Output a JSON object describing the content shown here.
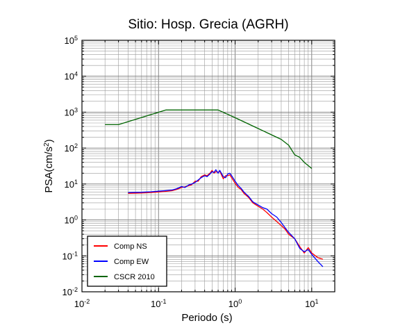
{
  "chart_data": {
    "type": "line",
    "title": "Sitio: Hosp. Grecia (AGRH)",
    "xlabel": "Periodo (s)",
    "ylabel": {
      "base": "PSA(cm/s",
      "sup": "2",
      "close": ")"
    },
    "xscale": "log",
    "yscale": "log",
    "xlim": [
      0.01,
      20
    ],
    "ylim": [
      0.01,
      100000
    ],
    "grid": true,
    "legend_position": "bottom-left",
    "x_ticks": [
      {
        "value": 0.01,
        "base": "10",
        "exp": "-2"
      },
      {
        "value": 0.1,
        "base": "10",
        "exp": "-1"
      },
      {
        "value": 1,
        "base": "10",
        "exp": "0"
      },
      {
        "value": 10,
        "base": "10",
        "exp": "1"
      }
    ],
    "y_ticks": [
      {
        "value": 0.01,
        "base": "10",
        "exp": "-2"
      },
      {
        "value": 0.1,
        "base": "10",
        "exp": "-1"
      },
      {
        "value": 1,
        "base": "10",
        "exp": "0"
      },
      {
        "value": 10,
        "base": "10",
        "exp": "1"
      },
      {
        "value": 100,
        "base": "10",
        "exp": "2"
      },
      {
        "value": 1000,
        "base": "10",
        "exp": "3"
      },
      {
        "value": 10000,
        "base": "10",
        "exp": "4"
      },
      {
        "value": 100000,
        "base": "10",
        "exp": "5"
      }
    ],
    "series": [
      {
        "name": "Comp NS",
        "color": "#ff0000",
        "x": [
          0.04,
          0.06,
          0.08,
          0.1,
          0.12,
          0.15,
          0.17,
          0.2,
          0.22,
          0.25,
          0.27,
          0.3,
          0.33,
          0.36,
          0.4,
          0.43,
          0.47,
          0.5,
          0.53,
          0.56,
          0.6,
          0.63,
          0.67,
          0.7,
          0.75,
          0.8,
          0.85,
          0.9,
          1.0,
          1.1,
          1.2,
          1.3,
          1.5,
          1.7,
          2.0,
          2.3,
          2.6,
          3.0,
          3.5,
          4.0,
          4.5,
          5.0,
          6.0,
          7.0,
          8.0,
          9.0,
          10.0,
          12.0,
          14.0
        ],
        "y": [
          5.5,
          5.6,
          5.8,
          6.0,
          6.2,
          6.5,
          7.0,
          8.0,
          8.3,
          9.0,
          9.5,
          12.0,
          12.0,
          16.0,
          18.0,
          17.0,
          20.0,
          24.0,
          20.0,
          22.0,
          21.0,
          23.0,
          17.0,
          14.0,
          17.0,
          17.0,
          18.0,
          15.0,
          10.5,
          8.0,
          7.0,
          5.5,
          4.2,
          3.0,
          2.4,
          2.0,
          1.6,
          1.2,
          0.9,
          0.7,
          0.55,
          0.4,
          0.3,
          0.18,
          0.12,
          0.17,
          0.12,
          0.09,
          0.08
        ]
      },
      {
        "name": "Comp EW",
        "color": "#0000ff",
        "x": [
          0.04,
          0.06,
          0.08,
          0.1,
          0.12,
          0.15,
          0.17,
          0.2,
          0.22,
          0.25,
          0.27,
          0.3,
          0.33,
          0.36,
          0.4,
          0.43,
          0.47,
          0.5,
          0.53,
          0.56,
          0.6,
          0.63,
          0.67,
          0.7,
          0.75,
          0.8,
          0.85,
          0.9,
          1.0,
          1.1,
          1.2,
          1.3,
          1.5,
          1.7,
          2.0,
          2.3,
          2.6,
          3.0,
          3.5,
          4.0,
          4.5,
          5.0,
          6.0,
          7.0,
          8.0,
          9.0,
          10.0,
          12.0,
          14.0
        ],
        "y": [
          5.8,
          5.9,
          6.1,
          6.3,
          6.5,
          6.8,
          7.3,
          8.5,
          8.0,
          9.5,
          10.0,
          11.0,
          13.0,
          15.0,
          17.0,
          16.0,
          19.0,
          22.0,
          21.0,
          25.0,
          20.0,
          24.0,
          19.0,
          16.0,
          15.0,
          19.0,
          20.0,
          17.0,
          12.0,
          9.0,
          7.5,
          6.0,
          4.5,
          3.2,
          2.6,
          2.2,
          2.0,
          1.5,
          1.2,
          0.85,
          0.6,
          0.45,
          0.3,
          0.16,
          0.13,
          0.15,
          0.11,
          0.07,
          0.05
        ]
      },
      {
        "name": "CSCR 2010",
        "color": "#006400",
        "x": [
          0.02,
          0.03,
          0.125,
          0.6,
          1.0,
          2.0,
          4.0,
          5.0,
          6.0,
          7.0,
          8.0,
          10.0
        ],
        "y": [
          450,
          450,
          1150,
          1150,
          700,
          350,
          175,
          120,
          65,
          55,
          40,
          27
        ]
      }
    ]
  }
}
